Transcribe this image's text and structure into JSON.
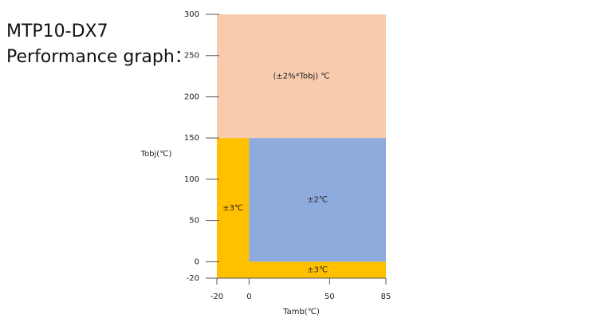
{
  "title": "MTP10-DX7",
  "subtitle": "Performance graph：",
  "chart_data": {
    "type": "region",
    "xlabel": "Tamb(℃)",
    "ylabel": "Tobj(℃)",
    "xlim": [
      -20,
      85
    ],
    "xticks": [
      -20,
      0,
      50,
      85
    ],
    "ylim": [
      -20,
      300
    ],
    "yticks": [
      -20,
      0,
      50,
      100,
      150,
      200,
      250,
      300
    ],
    "regions": [
      {
        "label": "(±2%*Tobj) ℃",
        "color": "#f8cbad",
        "x": [
          -20,
          85
        ],
        "y": [
          150,
          300
        ]
      },
      {
        "label": "±3℃",
        "color": "#ffc000",
        "x": [
          -20,
          0
        ],
        "y": [
          -20,
          150
        ]
      },
      {
        "label": "±3℃",
        "color": "#ffc000",
        "x": [
          0,
          85
        ],
        "y": [
          -20,
          0
        ]
      },
      {
        "label": "±2℃",
        "color": "#8faadc",
        "x": [
          0,
          85
        ],
        "y": [
          0,
          150
        ]
      }
    ]
  }
}
